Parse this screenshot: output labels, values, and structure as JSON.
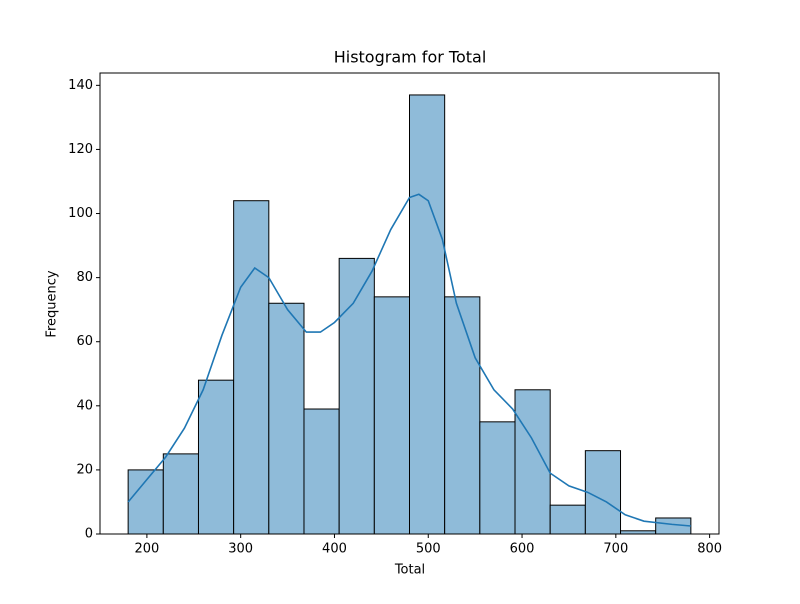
{
  "chart_data": {
    "type": "histogram",
    "title": "Histogram for Total",
    "x_label": "Total",
    "y_label": "Frequency",
    "bins": [
      180,
      217.5,
      255,
      292.5,
      330,
      367.5,
      405,
      442.5,
      480,
      517.5,
      555,
      592.5,
      630,
      667.5,
      705,
      742.5,
      780
    ],
    "counts": [
      20,
      25,
      48,
      104,
      72,
      39,
      86,
      74,
      137,
      74,
      35,
      45,
      9,
      26,
      1,
      5
    ],
    "color": "#8fbbd9",
    "edge_color": "#000000",
    "kde": {
      "color": "#1f77b4",
      "x": [
        180,
        200,
        220,
        240,
        260,
        280,
        300,
        315,
        330,
        350,
        370,
        385,
        400,
        420,
        440,
        460,
        480,
        490,
        500,
        515,
        530,
        550,
        570,
        590,
        610,
        630,
        650,
        670,
        690,
        710,
        730,
        760,
        780
      ],
      "y": [
        10,
        17,
        24,
        33,
        45,
        62,
        77,
        83,
        80,
        70,
        63,
        63,
        66,
        72,
        82,
        95,
        105,
        106,
        104,
        92,
        72,
        55,
        45,
        39,
        30,
        19,
        15,
        13,
        10,
        6,
        4,
        3,
        2.5
      ]
    },
    "xlim": [
      150,
      810
    ],
    "ylim": [
      0,
      143.85
    ],
    "xticks": [
      200,
      300,
      400,
      500,
      600,
      700,
      800
    ],
    "yticks": [
      0,
      20,
      40,
      60,
      80,
      100,
      120,
      140
    ]
  }
}
